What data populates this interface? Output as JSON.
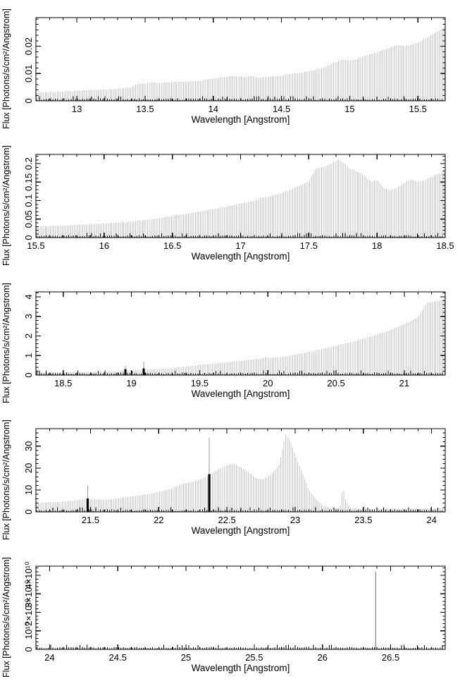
{
  "colors": {
    "bar": "#c6c6c6",
    "emission_line": "#000000",
    "error_line": "#999999",
    "frame": "#000000",
    "text": "#000000",
    "background": "#ffffff"
  },
  "chart_data": [
    {
      "type": "bar",
      "title": "",
      "xlabel": "Wavelength [Angstrom]",
      "ylabel": "Flux [Photons/s/cm²/Angstrom]",
      "xlim": [
        12.7,
        15.7
      ],
      "ylim": [
        0,
        0.0305
      ],
      "grid": false,
      "legend": null,
      "x_major_ticks": [
        13,
        13.5,
        14,
        14.5,
        15,
        15.5
      ],
      "x_major_labels": [
        "13",
        "13.5",
        "14",
        "14.5",
        "15",
        "15.5"
      ],
      "x_minor_step": 0.1,
      "y_major_ticks": [
        0,
        0.01,
        0.02
      ],
      "y_major_labels": [
        "0",
        "0.01",
        "0.02"
      ],
      "y_minor_step": 0.002,
      "bar_step": 0.0125,
      "envelope_points": [
        [
          12.7,
          0.003
        ],
        [
          12.85,
          0.0033
        ],
        [
          13.0,
          0.0036
        ],
        [
          13.1,
          0.004
        ],
        [
          13.2,
          0.0041
        ],
        [
          13.3,
          0.0044
        ],
        [
          13.4,
          0.005
        ],
        [
          13.45,
          0.0063
        ],
        [
          13.5,
          0.0062
        ],
        [
          13.55,
          0.0068
        ],
        [
          13.6,
          0.0065
        ],
        [
          13.7,
          0.0069
        ],
        [
          13.8,
          0.007
        ],
        [
          13.9,
          0.0073
        ],
        [
          14.0,
          0.0082
        ],
        [
          14.1,
          0.0088
        ],
        [
          14.15,
          0.0091
        ],
        [
          14.22,
          0.0087
        ],
        [
          14.27,
          0.0091
        ],
        [
          14.33,
          0.0085
        ],
        [
          14.4,
          0.0087
        ],
        [
          14.5,
          0.0092
        ],
        [
          14.6,
          0.01
        ],
        [
          14.7,
          0.0108
        ],
        [
          14.8,
          0.012
        ],
        [
          14.9,
          0.0142
        ],
        [
          14.95,
          0.0152
        ],
        [
          15.0,
          0.0148
        ],
        [
          15.05,
          0.0153
        ],
        [
          15.1,
          0.0163
        ],
        [
          15.2,
          0.0178
        ],
        [
          15.3,
          0.0196
        ],
        [
          15.35,
          0.0205
        ],
        [
          15.4,
          0.0199
        ],
        [
          15.45,
          0.0206
        ],
        [
          15.5,
          0.0213
        ],
        [
          15.6,
          0.0242
        ],
        [
          15.7,
          0.027
        ]
      ],
      "emission_lines": [],
      "gray_spikes": []
    },
    {
      "type": "bar",
      "title": "",
      "xlabel": "Wavelength [Angstrom]",
      "ylabel": "Flux [Photons/s/cm²/Angstrom]",
      "xlim": [
        15.5,
        18.5
      ],
      "ylim": [
        0,
        0.225
      ],
      "grid": false,
      "legend": null,
      "x_major_ticks": [
        15.5,
        16,
        16.5,
        17,
        17.5,
        18,
        18.5
      ],
      "x_major_labels": [
        "15.5",
        "16",
        "16.5",
        "17",
        "17.5",
        "18",
        "18.5"
      ],
      "x_minor_step": 0.1,
      "y_major_ticks": [
        0,
        0.05,
        0.1,
        0.15,
        0.2
      ],
      "y_major_labels": [
        "0",
        "0.05",
        "0.1",
        "0.15",
        "0.2"
      ],
      "y_minor_step": 0.01,
      "bar_step": 0.0125,
      "envelope_points": [
        [
          15.5,
          0.03
        ],
        [
          15.7,
          0.032
        ],
        [
          15.9,
          0.036
        ],
        [
          16.0,
          0.038
        ],
        [
          16.2,
          0.043
        ],
        [
          16.4,
          0.052
        ],
        [
          16.5,
          0.059
        ],
        [
          16.6,
          0.064
        ],
        [
          16.8,
          0.077
        ],
        [
          17.0,
          0.092
        ],
        [
          17.1,
          0.1
        ],
        [
          17.15,
          0.108
        ],
        [
          17.2,
          0.11
        ],
        [
          17.3,
          0.121
        ],
        [
          17.4,
          0.135
        ],
        [
          17.5,
          0.152
        ],
        [
          17.55,
          0.186
        ],
        [
          17.6,
          0.191
        ],
        [
          17.65,
          0.197
        ],
        [
          17.72,
          0.212
        ],
        [
          17.76,
          0.2
        ],
        [
          17.8,
          0.186
        ],
        [
          17.85,
          0.179
        ],
        [
          17.9,
          0.171
        ],
        [
          17.95,
          0.151
        ],
        [
          18.0,
          0.156
        ],
        [
          18.05,
          0.133
        ],
        [
          18.1,
          0.128
        ],
        [
          18.15,
          0.135
        ],
        [
          18.2,
          0.147
        ],
        [
          18.25,
          0.158
        ],
        [
          18.3,
          0.15
        ],
        [
          18.35,
          0.155
        ],
        [
          18.4,
          0.165
        ],
        [
          18.5,
          0.18
        ]
      ],
      "emission_lines": [],
      "gray_spikes": []
    },
    {
      "type": "bar",
      "title": "",
      "xlabel": "Wavelength [Angstrom]",
      "ylabel": "Flux [Photons/s/cm²/Angstrom]",
      "xlim": [
        18.3,
        21.3
      ],
      "ylim": [
        0,
        4.25
      ],
      "grid": false,
      "legend": null,
      "x_major_ticks": [
        18.5,
        19,
        19.5,
        20,
        20.5,
        21
      ],
      "x_major_labels": [
        "18.5",
        "19",
        "19.5",
        "20",
        "20.5",
        "21"
      ],
      "x_minor_step": 0.1,
      "y_major_ticks": [
        0,
        1,
        2,
        3,
        4
      ],
      "y_major_labels": [
        "0",
        "1",
        "2",
        "3",
        "4"
      ],
      "y_minor_step": 0.2,
      "bar_step": 0.0125,
      "envelope_points": [
        [
          18.3,
          0.12
        ],
        [
          18.5,
          0.15
        ],
        [
          18.7,
          0.17
        ],
        [
          18.9,
          0.21
        ],
        [
          19.0,
          0.24
        ],
        [
          19.1,
          0.27
        ],
        [
          19.3,
          0.35
        ],
        [
          19.5,
          0.52
        ],
        [
          19.7,
          0.65
        ],
        [
          19.9,
          0.8
        ],
        [
          19.98,
          0.9
        ],
        [
          20.03,
          0.88
        ],
        [
          20.1,
          0.92
        ],
        [
          20.3,
          1.18
        ],
        [
          20.5,
          1.5
        ],
        [
          20.7,
          1.85
        ],
        [
          20.9,
          2.3
        ],
        [
          21.0,
          2.6
        ],
        [
          21.1,
          2.95
        ],
        [
          21.14,
          3.4
        ],
        [
          21.17,
          3.72
        ],
        [
          21.22,
          3.75
        ],
        [
          21.26,
          3.8
        ],
        [
          21.3,
          3.95
        ]
      ],
      "emission_lines": [
        {
          "x": 18.955,
          "flux": 0.3,
          "err_top": 0.46
        },
        {
          "x": 19.09,
          "flux": 0.34,
          "err_top": 0.66
        }
      ],
      "gray_spikes": []
    },
    {
      "type": "bar",
      "title": "",
      "xlabel": "Wavelength [Angstrom]",
      "ylabel": "Flux [Photons/s/cm²/Angstrom]",
      "xlim": [
        21.1,
        24.1
      ],
      "ylim": [
        0,
        38
      ],
      "grid": false,
      "legend": null,
      "x_major_ticks": [
        21.5,
        22,
        22.5,
        23,
        23.5,
        24
      ],
      "x_major_labels": [
        "21.5",
        "22",
        "22.5",
        "23",
        "23.5",
        "24"
      ],
      "x_minor_step": 0.1,
      "y_major_ticks": [
        0,
        10,
        20,
        30
      ],
      "y_major_labels": [
        "0",
        "10",
        "20",
        "30"
      ],
      "y_minor_step": 2,
      "bar_step": 0.0125,
      "envelope_points": [
        [
          21.1,
          4.0
        ],
        [
          21.2,
          4.3
        ],
        [
          21.3,
          4.7
        ],
        [
          21.4,
          5.3
        ],
        [
          21.48,
          5.9
        ],
        [
          21.55,
          5.6
        ],
        [
          21.62,
          5.6
        ],
        [
          21.7,
          6.2
        ],
        [
          21.8,
          7.0
        ],
        [
          21.9,
          7.9
        ],
        [
          22.0,
          9.0
        ],
        [
          22.1,
          10.8
        ],
        [
          22.18,
          13.0
        ],
        [
          22.22,
          13.3
        ],
        [
          22.3,
          14.8
        ],
        [
          22.37,
          16.8
        ],
        [
          22.45,
          19.8
        ],
        [
          22.52,
          21.8
        ],
        [
          22.57,
          21.5
        ],
        [
          22.65,
          18.5
        ],
        [
          22.72,
          15.2
        ],
        [
          22.76,
          14.9
        ],
        [
          22.82,
          16.8
        ],
        [
          22.88,
          21.0
        ],
        [
          22.91,
          30.0
        ],
        [
          22.93,
          35.3
        ],
        [
          22.96,
          33.0
        ],
        [
          23.0,
          26.0
        ],
        [
          23.05,
          18.0
        ],
        [
          23.1,
          10.0
        ],
        [
          23.15,
          6.0
        ],
        [
          23.2,
          3.0
        ],
        [
          23.26,
          1.8
        ],
        [
          23.31,
          1.6
        ],
        [
          23.33,
          2.5
        ],
        [
          23.35,
          11.2
        ],
        [
          23.37,
          5.5
        ],
        [
          23.4,
          2.0
        ],
        [
          23.45,
          1.5
        ],
        [
          23.6,
          1.4
        ],
        [
          23.8,
          1.5
        ],
        [
          24.0,
          1.5
        ],
        [
          24.1,
          1.6
        ]
      ],
      "emission_lines": [
        {
          "x": 21.48,
          "flux": 6.1,
          "err_top": 11.8
        },
        {
          "x": 22.37,
          "flux": 17.2,
          "err_top": 34.0
        }
      ],
      "gray_spikes": []
    },
    {
      "type": "bar",
      "title": "",
      "xlabel": "Wavelength [Angstrom]",
      "ylabel": "Flux [Photons/s/cm²/Angstrom]",
      "xlim": [
        23.9,
        26.9
      ],
      "ylim": [
        0,
        45000000000
      ],
      "grid": false,
      "legend": null,
      "x_major_ticks": [
        24,
        24.5,
        25,
        25.5,
        26,
        26.5
      ],
      "x_major_labels": [
        "24",
        "24.5",
        "25",
        "25.5",
        "26",
        "26.5"
      ],
      "x_minor_step": 0.1,
      "y_major_ticks": [
        0,
        10000000000,
        20000000000,
        30000000000,
        40000000000
      ],
      "y_major_labels": [
        "0",
        "10¹⁰",
        "2×10¹⁰",
        "3×10¹⁰",
        "4×10¹⁰"
      ],
      "y_minor_step": 2000000000,
      "bar_step": 0.0125,
      "envelope_points": [
        [
          23.9,
          0
        ],
        [
          26.9,
          0
        ]
      ],
      "emission_lines": [],
      "gray_spikes": [
        {
          "x": 26.39,
          "flux": 42000000000
        }
      ]
    }
  ]
}
